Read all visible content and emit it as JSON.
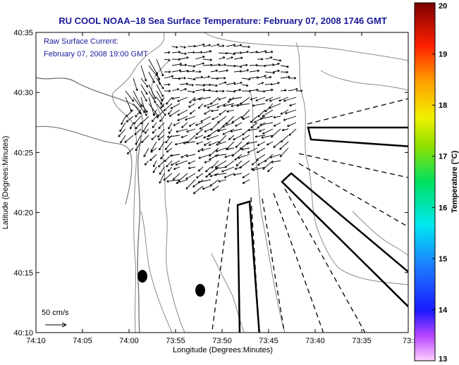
{
  "chart_data": {
    "type": "map",
    "title": "RU COOL  NOAA–18  Sea Surface Temperature:  February 07, 2008 1746 GMT",
    "annotation_lines": [
      "Raw Surface Current:",
      "February 07, 2008 19:00 GMT"
    ],
    "scale_label": "50 cm/s",
    "xlabel": "Longitude (Degrees:Minutes)",
    "ylabel": "Latitude (Degrees:Minutes)",
    "x_ticks": [
      "74:10",
      "74:05",
      "74:00",
      "73:55",
      "73:50",
      "73:45",
      "73:40",
      "73:35",
      "73:3"
    ],
    "y_ticks": [
      "40:10",
      "40:15",
      "40:20",
      "40:25",
      "40:30",
      "40:35"
    ],
    "x_range_minutes_west": [
      10,
      30
    ],
    "y_range_minutes_north": [
      10,
      35
    ],
    "colorbar": {
      "label": "Temperature (°C)",
      "range": [
        13,
        20
      ],
      "ticks": [
        "13",
        "14",
        "15",
        "16",
        "17",
        "18",
        "19",
        "20"
      ]
    },
    "exclusion_zones": 3,
    "markers": 2
  },
  "colors": {
    "title": "#1a1a9a",
    "contour": "#888888",
    "vectors": "#000000"
  }
}
